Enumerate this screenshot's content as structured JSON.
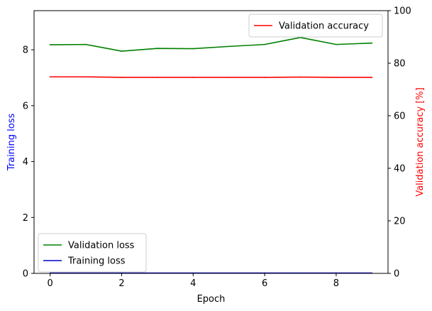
{
  "chart_data": {
    "type": "line",
    "xlabel": "Epoch",
    "ylabel_left": "Training loss",
    "ylabel_right": "Validation accuracy [%]",
    "x": [
      0,
      1,
      2,
      3,
      4,
      5,
      6,
      7,
      8,
      9
    ],
    "xlim": [
      -0.45,
      9.45
    ],
    "ylim_left": [
      0,
      9.4
    ],
    "ylim_right": [
      0,
      100
    ],
    "xticks": [
      "0",
      "2",
      "4",
      "6",
      "8"
    ],
    "yticks_left": [
      "0",
      "2",
      "4",
      "6",
      "8"
    ],
    "yticks_right": [
      "0",
      "20",
      "40",
      "60",
      "80",
      "100"
    ],
    "grid": false,
    "series": [
      {
        "name": "Validation loss",
        "axis": "left",
        "color": "#008000",
        "values": [
          8.18,
          8.19,
          7.95,
          8.05,
          8.04,
          8.12,
          8.19,
          8.44,
          8.19,
          8.24
        ]
      },
      {
        "name": "Training loss",
        "axis": "left",
        "color": "#0000cc",
        "values": [
          0.01,
          0.01,
          0.01,
          0.01,
          0.01,
          0.01,
          0.01,
          0.01,
          0.01,
          0.01
        ]
      },
      {
        "name": "Validation accuracy",
        "axis": "right",
        "color": "#ff0000",
        "values": [
          74.8,
          74.8,
          74.6,
          74.6,
          74.6,
          74.6,
          74.6,
          74.7,
          74.6,
          74.6
        ]
      }
    ],
    "legends": [
      {
        "placement": "upper-right",
        "entries": [
          "Validation accuracy"
        ]
      },
      {
        "placement": "lower-left",
        "entries": [
          "Validation loss",
          "Training loss"
        ]
      }
    ],
    "label_colors": {
      "left": "#0000ff",
      "right": "#ff0000"
    }
  }
}
